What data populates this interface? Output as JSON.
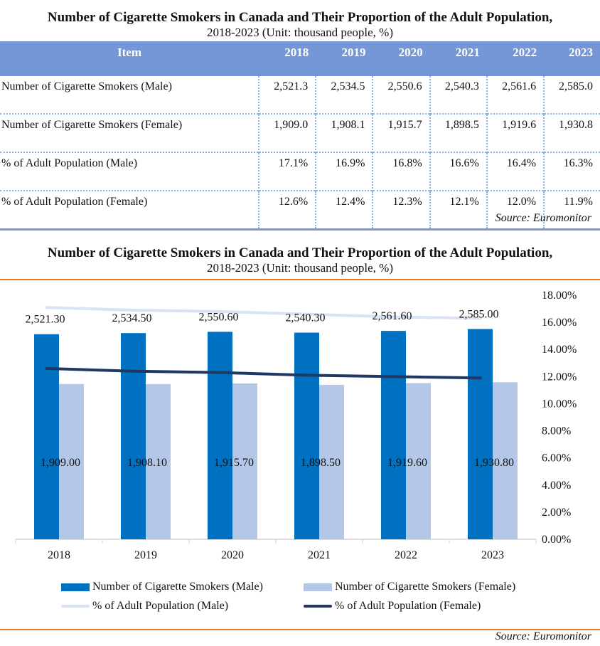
{
  "table_title": {
    "main": "Number of Cigarette Smokers in Canada and Their Proportion of the Adult Population,",
    "sub": "2018-2023 (Unit:  thousand people, %)"
  },
  "table": {
    "header_item": "Item",
    "years": [
      "2018",
      "2019",
      "2020",
      "2021",
      "2022",
      "2023"
    ],
    "rows": [
      {
        "label": "Number of Cigarette Smokers (Male)",
        "values": [
          "2,521.3",
          "2,534.5",
          "2,550.6",
          "2,540.3",
          "2,561.6",
          "2,585.0"
        ]
      },
      {
        "label": "Number of Cigarette Smokers (Female)",
        "values": [
          "1,909.0",
          "1,908.1",
          "1,915.7",
          "1,898.5",
          "1,919.6",
          "1,930.8"
        ]
      },
      {
        "label": "% of Adult Population (Male)",
        "values": [
          "17.1%",
          "16.9%",
          "16.8%",
          "16.6%",
          "16.4%",
          "16.3%"
        ]
      },
      {
        "label": "% of Adult Population (Female)",
        "values": [
          "12.6%",
          "12.4%",
          "12.3%",
          "12.1%",
          "12.0%",
          "11.9%"
        ]
      }
    ],
    "source": "Source:  Euromonitor"
  },
  "chart_title": {
    "main": "Number of Cigarette Smokers in Canada and Their Proportion of the Adult Population,",
    "sub": "2018-2023 (Unit:  thousand people, %)"
  },
  "chart_data": {
    "type": "bar",
    "title": "Number of Cigarette Smokers in Canada and Their Proportion of the Adult Population, 2018-2023 (Unit: thousand people, %)",
    "categories": [
      "2018",
      "2019",
      "2020",
      "2021",
      "2022",
      "2023"
    ],
    "series": [
      {
        "name": "Number of Cigarette Smokers (Male)",
        "type": "bar",
        "axis": "primary",
        "color": "#0070c0",
        "values": [
          2521.3,
          2534.5,
          2550.6,
          2540.3,
          2561.6,
          2585.0
        ],
        "labels": [
          "2,521.30",
          "2,534.50",
          "2,550.60",
          "2,540.30",
          "2,561.60",
          "2,585.00"
        ]
      },
      {
        "name": "Number of Cigarette Smokers (Female)",
        "type": "bar",
        "axis": "primary",
        "color": "#b4c7e7",
        "values": [
          1909.0,
          1908.1,
          1915.7,
          1898.5,
          1919.6,
          1930.8
        ],
        "labels": [
          "1,909.00",
          "1,908.10",
          "1,915.70",
          "1,898.50",
          "1,919.60",
          "1,930.80"
        ]
      },
      {
        "name": "% of Adult Population (Male)",
        "type": "line",
        "axis": "secondary",
        "color": "#dae3f3",
        "values": [
          17.1,
          16.9,
          16.8,
          16.6,
          16.4,
          16.3
        ]
      },
      {
        "name": "% of Adult Population (Female)",
        "type": "line",
        "axis": "secondary",
        "color": "#203864",
        "values": [
          12.6,
          12.4,
          12.3,
          12.1,
          12.0,
          11.9
        ]
      }
    ],
    "primary_ylim": [
      0,
      3000
    ],
    "secondary_ylim": [
      0,
      18
    ],
    "secondary_ticks": [
      "0.00%",
      "2.00%",
      "4.00%",
      "6.00%",
      "8.00%",
      "10.00%",
      "12.00%",
      "14.00%",
      "16.00%",
      "18.00%"
    ],
    "xlabel": "",
    "ylabel": "",
    "grid": false,
    "legend": "bottom",
    "source": "Source:  Euromonitor"
  }
}
